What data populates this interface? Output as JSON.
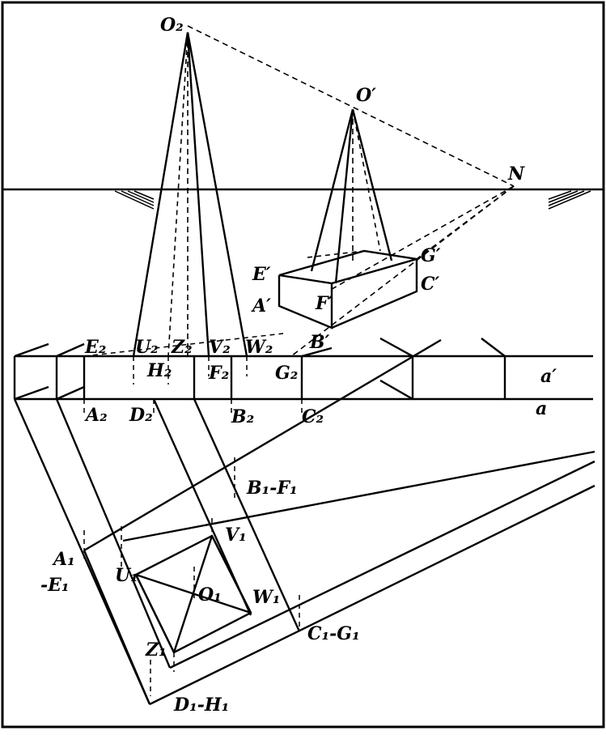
{
  "figure": {
    "labels": {
      "O2": "O₂",
      "O_prime": "O′",
      "N": "N",
      "E_prime": "E′",
      "A_prime": "A′",
      "F_prime": "F′",
      "B_prime": "B′",
      "G_prime": "G′",
      "C_prime": "C′",
      "E2": "E₂",
      "U2": "U₂",
      "Z2": "Z₂",
      "V2": "V₂",
      "W2": "W₂",
      "H2": "H₂",
      "F2": "F₂",
      "G2": "G₂",
      "A2": "A₂",
      "D2": "D₂",
      "B2": "B₂",
      "C2": "C₂",
      "a_prime": "a′",
      "a": "a",
      "B1F1": "B₁-F₁",
      "V1": "V₁",
      "A1": "A₁",
      "E1": "-E₁",
      "U1": "U₁",
      "O1": "O₁",
      "W1": "W₁",
      "C1G1": "C₁-G₁",
      "Z1": "Z₁",
      "D1H1": "D₁-H₁"
    }
  }
}
